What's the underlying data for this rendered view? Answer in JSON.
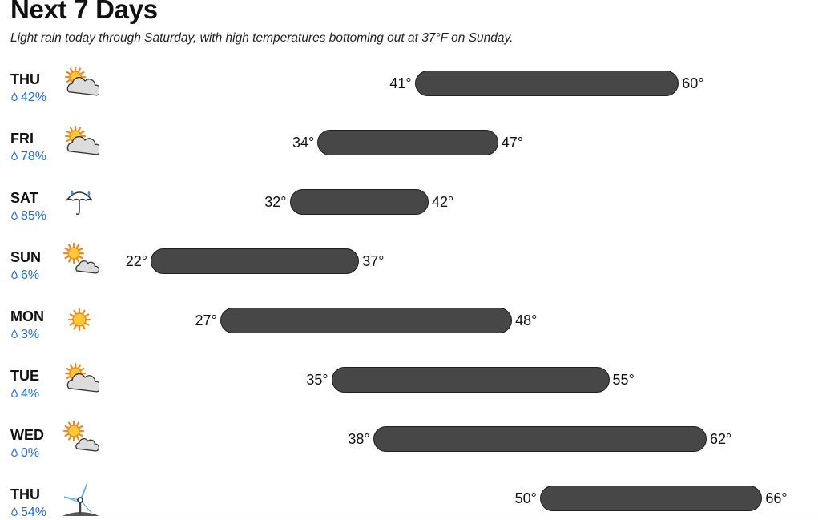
{
  "title": "Next 7 Days",
  "subtitle": "Light rain today through Saturday, with high temperatures bottoming out at 37°F on Sunday.",
  "chart_data": {
    "type": "bar",
    "orientation": "horizontal-range",
    "categories": [
      "THU",
      "FRI",
      "SAT",
      "SUN",
      "MON",
      "TUE",
      "WED",
      "THU"
    ],
    "series": [
      {
        "name": "",
        "values": [
          41,
          34,
          32,
          22,
          27,
          35,
          38,
          50
        ]
      },
      {
        "name": "",
        "values": [
          60,
          47,
          42,
          37,
          48,
          55,
          62,
          66
        ]
      }
    ],
    "low_labels": [
      "41°",
      "34°",
      "32°",
      "22°",
      "27°",
      "35°",
      "38°",
      "50°"
    ],
    "high_labels": [
      "60°",
      "47°",
      "42°",
      "37°",
      "48°",
      "55°",
      "62°",
      "66°"
    ],
    "precipitation": [
      "42%",
      "78%",
      "85%",
      "6%",
      "3%",
      "4%",
      "0%",
      "54%"
    ],
    "icons": [
      "partly-cloudy-icon",
      "partly-cloudy-icon",
      "umbrella-rain-icon",
      "sun-small-cloud-icon",
      "sun-icon",
      "partly-cloudy-icon",
      "sun-small-cloud-icon",
      "wind-turbine-icon"
    ],
    "xlim": [
      22,
      66
    ],
    "title": "Next 7 Days",
    "xlabel": "",
    "ylabel": "",
    "grid": false,
    "legend": "none"
  },
  "colors": {
    "bar_fill": "#474747",
    "bar_border": "#1e1e1e",
    "precip_text": "#1a6fd4",
    "sun": "#f5a623",
    "cloud": "#d9d9d9"
  }
}
